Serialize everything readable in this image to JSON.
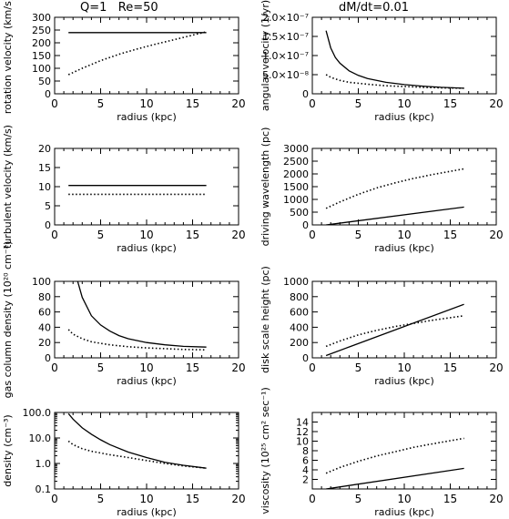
{
  "header": {
    "left_title": "Q=1   Re=50",
    "right_title": "dM/dt=0.01"
  },
  "chart_data": [
    {
      "type": "line",
      "scale": "linear",
      "xlabel": "radius (kpc)",
      "ylabel": "rotation velocity (km/s)",
      "xlim": [
        0,
        20
      ],
      "ylim": [
        0,
        300
      ],
      "xticks": [
        0,
        5,
        10,
        15,
        20
      ],
      "xticklabels": [
        "0",
        "5",
        "10",
        "15",
        "20"
      ],
      "yticks": [
        0,
        50,
        100,
        150,
        200,
        250,
        300
      ],
      "yticklabels": [
        "0",
        "50",
        "100",
        "150",
        "200",
        "250",
        "300"
      ],
      "series": [
        {
          "style": "solid",
          "x": [
            1.5,
            16.5
          ],
          "y": [
            240,
            240
          ]
        },
        {
          "style": "dotted",
          "x": [
            1.5,
            3,
            5,
            7,
            9,
            11,
            13,
            15,
            16.5
          ],
          "y": [
            75,
            100,
            130,
            155,
            176,
            195,
            212,
            230,
            243
          ]
        }
      ]
    },
    {
      "type": "line",
      "scale": "linear",
      "xlabel": "radius (kpc)",
      "ylabel": "angular velocity (1/yr)",
      "xlim": [
        0,
        20
      ],
      "ylim": [
        0,
        2e-07
      ],
      "xticks": [
        0,
        5,
        10,
        15,
        20
      ],
      "xticklabels": [
        "0",
        "5",
        "10",
        "15",
        "20"
      ],
      "yticks": [
        0,
        5e-08,
        1e-07,
        1.5e-07,
        2e-07
      ],
      "yticklabels": [
        "0",
        "5.0×10⁻⁸",
        "1.0×10⁻⁷",
        "1.5×10⁻⁷",
        "2.0×10⁻⁷"
      ],
      "series": [
        {
          "style": "solid",
          "x": [
            1.5,
            2,
            2.5,
            3,
            4,
            5,
            6,
            8,
            10,
            12,
            14,
            16.5
          ],
          "y": [
            1.65e-07,
            1.2e-07,
            9.5e-08,
            8e-08,
            6e-08,
            4.8e-08,
            4e-08,
            3e-08,
            2.4e-08,
            2e-08,
            1.7e-08,
            1.45e-08
          ]
        },
        {
          "style": "dotted",
          "x": [
            1.5,
            2,
            3,
            4,
            6,
            8,
            10,
            12,
            14,
            16.5
          ],
          "y": [
            5e-08,
            4.3e-08,
            3.5e-08,
            3e-08,
            2.5e-08,
            2.1e-08,
            1.9e-08,
            1.7e-08,
            1.55e-08,
            1.45e-08
          ]
        }
      ]
    },
    {
      "type": "line",
      "scale": "linear",
      "xlabel": "radius (kpc)",
      "ylabel": "turbulent velocity (km/s)",
      "xlim": [
        0,
        20
      ],
      "ylim": [
        0,
        20
      ],
      "xticks": [
        0,
        5,
        10,
        15,
        20
      ],
      "xticklabels": [
        "0",
        "5",
        "10",
        "15",
        "20"
      ],
      "yticks": [
        0,
        5,
        10,
        15,
        20
      ],
      "yticklabels": [
        "0",
        "5",
        "10",
        "15",
        "20"
      ],
      "series": [
        {
          "style": "solid",
          "x": [
            1.5,
            16.5
          ],
          "y": [
            10.3,
            10.3
          ]
        },
        {
          "style": "dotted",
          "x": [
            1.5,
            16.5
          ],
          "y": [
            8.0,
            8.0
          ]
        }
      ]
    },
    {
      "type": "line",
      "scale": "linear",
      "xlabel": "radius (kpc)",
      "ylabel": "driving wavelength (pc)",
      "xlim": [
        0,
        20
      ],
      "ylim": [
        0,
        3000
      ],
      "xticks": [
        0,
        5,
        10,
        15,
        20
      ],
      "xticklabels": [
        "0",
        "5",
        "10",
        "15",
        "20"
      ],
      "yticks": [
        0,
        500,
        1000,
        1500,
        2000,
        2500,
        3000
      ],
      "yticklabels": [
        "0",
        "500",
        "1000",
        "1500",
        "2000",
        "2500",
        "3000"
      ],
      "series": [
        {
          "style": "solid",
          "x": [
            1.5,
            16.5
          ],
          "y": [
            0,
            700
          ]
        },
        {
          "style": "dotted",
          "x": [
            1.5,
            3,
            5,
            7,
            9,
            11,
            13,
            15,
            16.5
          ],
          "y": [
            650,
            900,
            1200,
            1450,
            1650,
            1820,
            1970,
            2100,
            2200
          ]
        }
      ]
    },
    {
      "type": "line",
      "scale": "linear",
      "xlabel": "radius (kpc)",
      "ylabel": "gas column density (10²⁰ cm⁻²)",
      "xlim": [
        0,
        20
      ],
      "ylim": [
        0,
        100
      ],
      "xticks": [
        0,
        5,
        10,
        15,
        20
      ],
      "xticklabels": [
        "0",
        "5",
        "10",
        "15",
        "20"
      ],
      "yticks": [
        0,
        20,
        40,
        60,
        80,
        100
      ],
      "yticklabels": [
        "0",
        "20",
        "40",
        "60",
        "80",
        "100"
      ],
      "series": [
        {
          "style": "solid",
          "x": [
            2.5,
            3,
            4,
            5,
            6,
            7,
            8,
            10,
            12,
            14,
            16.5
          ],
          "y": [
            100,
            79,
            55,
            43,
            35,
            29,
            25,
            20,
            17,
            15,
            14
          ]
        },
        {
          "style": "dotted",
          "x": [
            1.5,
            2,
            3,
            4,
            6,
            8,
            10,
            12,
            14,
            16.5
          ],
          "y": [
            37,
            31,
            25,
            21,
            17,
            14.5,
            13,
            12,
            11,
            10.5
          ]
        }
      ]
    },
    {
      "type": "line",
      "scale": "linear",
      "xlabel": "radius (kpc)",
      "ylabel": "disk scale height (pc)",
      "xlim": [
        0,
        20
      ],
      "ylim": [
        0,
        1000
      ],
      "xticks": [
        0,
        5,
        10,
        15,
        20
      ],
      "xticklabels": [
        "0",
        "5",
        "10",
        "15",
        "20"
      ],
      "yticks": [
        0,
        200,
        400,
        600,
        800,
        1000
      ],
      "yticklabels": [
        "0",
        "200",
        "400",
        "600",
        "800",
        "1000"
      ],
      "series": [
        {
          "style": "solid",
          "x": [
            1.5,
            16.5
          ],
          "y": [
            30,
            700
          ]
        },
        {
          "style": "dotted",
          "x": [
            1.5,
            3,
            5,
            7,
            9,
            11,
            13,
            15,
            16.5
          ],
          "y": [
            150,
            220,
            300,
            360,
            410,
            450,
            490,
            525,
            550
          ]
        }
      ]
    },
    {
      "type": "line",
      "scale": "log",
      "xlabel": "radius (kpc)",
      "ylabel": "density (cm⁻³)",
      "xlim": [
        0,
        20
      ],
      "ylim": [
        0.1,
        100
      ],
      "xticks": [
        0,
        5,
        10,
        15,
        20
      ],
      "xticklabels": [
        "0",
        "5",
        "10",
        "15",
        "20"
      ],
      "yticks": [
        0.1,
        1,
        10,
        100
      ],
      "yticklabels": [
        "0.1",
        "1.0",
        "10.0",
        "100.0"
      ],
      "series": [
        {
          "style": "solid",
          "x": [
            1.5,
            2,
            3,
            4,
            5,
            6,
            8,
            10,
            12,
            14,
            16.5
          ],
          "y": [
            90,
            55,
            25,
            14,
            8.5,
            5.5,
            2.8,
            1.7,
            1.1,
            0.85,
            0.65
          ]
        },
        {
          "style": "dotted",
          "x": [
            1.5,
            2,
            3,
            4,
            6,
            8,
            10,
            12,
            14,
            16.5
          ],
          "y": [
            7.5,
            5.5,
            3.8,
            3.0,
            2.2,
            1.7,
            1.3,
            1.0,
            0.8,
            0.65
          ]
        }
      ]
    },
    {
      "type": "line",
      "scale": "linear",
      "xlabel": "radius (kpc)",
      "ylabel": "viscosity (10²⁵ cm² sec⁻¹)",
      "xlim": [
        0,
        20
      ],
      "ylim": [
        0,
        16
      ],
      "xticks": [
        0,
        5,
        10,
        15,
        20
      ],
      "xticklabels": [
        "0",
        "5",
        "10",
        "15",
        "20"
      ],
      "yticks": [
        2,
        4,
        6,
        8,
        10,
        12,
        14
      ],
      "yticklabels": [
        "2",
        "4",
        "6",
        "8",
        "10",
        "12",
        "14"
      ],
      "series": [
        {
          "style": "solid",
          "x": [
            1.5,
            16.5
          ],
          "y": [
            0,
            4.3
          ]
        },
        {
          "style": "dotted",
          "x": [
            1.5,
            3,
            5,
            7,
            9,
            11,
            13,
            15,
            16.5
          ],
          "y": [
            3.3,
            4.5,
            5.8,
            6.9,
            7.8,
            8.7,
            9.4,
            10.1,
            10.6
          ]
        }
      ]
    }
  ]
}
